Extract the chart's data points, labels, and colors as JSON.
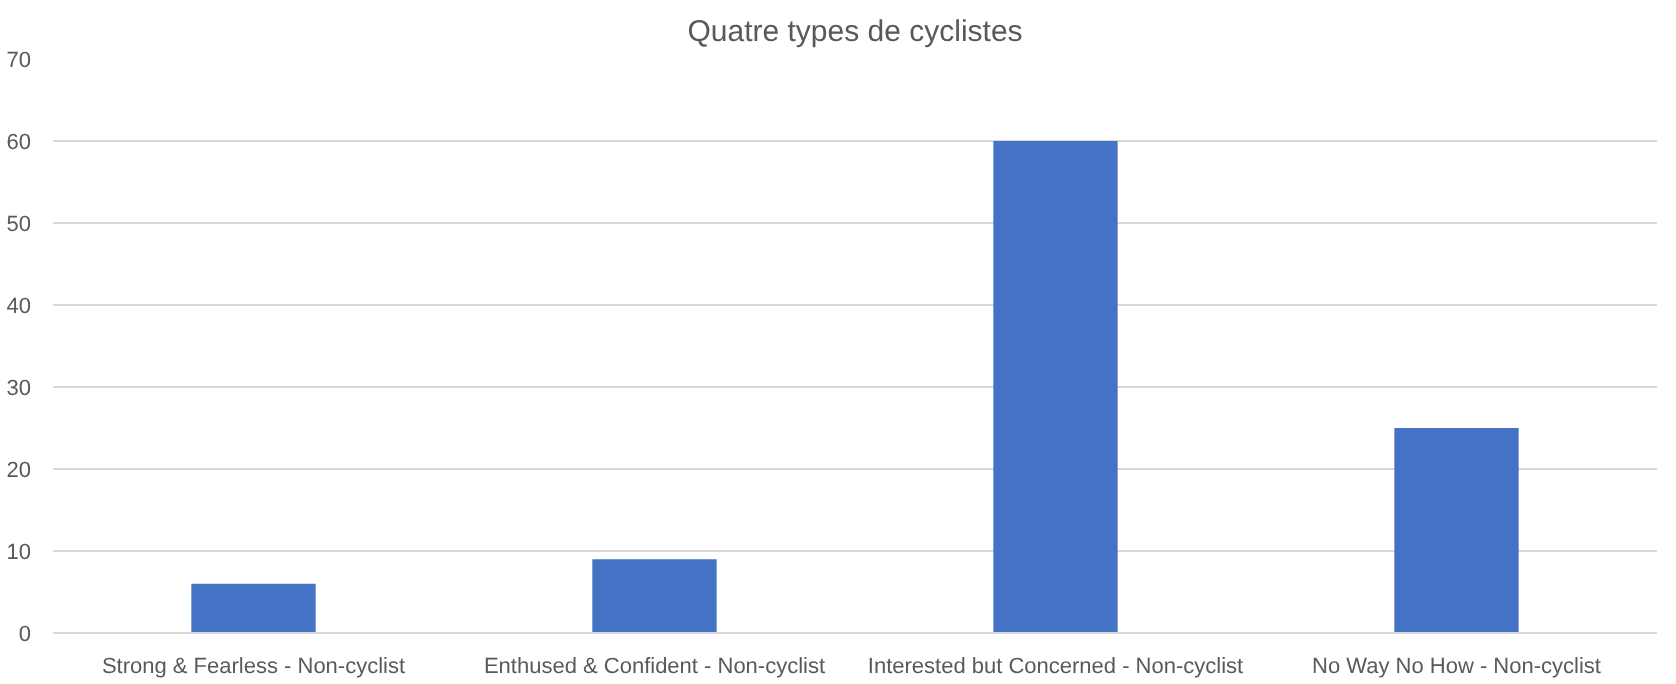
{
  "chart_data": {
    "type": "bar",
    "title": "Quatre types de cyclistes",
    "categories": [
      "Strong & Fearless - Non-cyclist",
      "Enthused & Confident - Non-cyclist",
      "Interested but Concerned - Non-cyclist",
      "No Way No How - Non-cyclist"
    ],
    "values": [
      6,
      9,
      60,
      25
    ],
    "color": "#4472c4",
    "ylim": [
      0,
      70
    ],
    "yticks": [
      0,
      10,
      20,
      30,
      40,
      50,
      60,
      70
    ],
    "grid": "y"
  }
}
